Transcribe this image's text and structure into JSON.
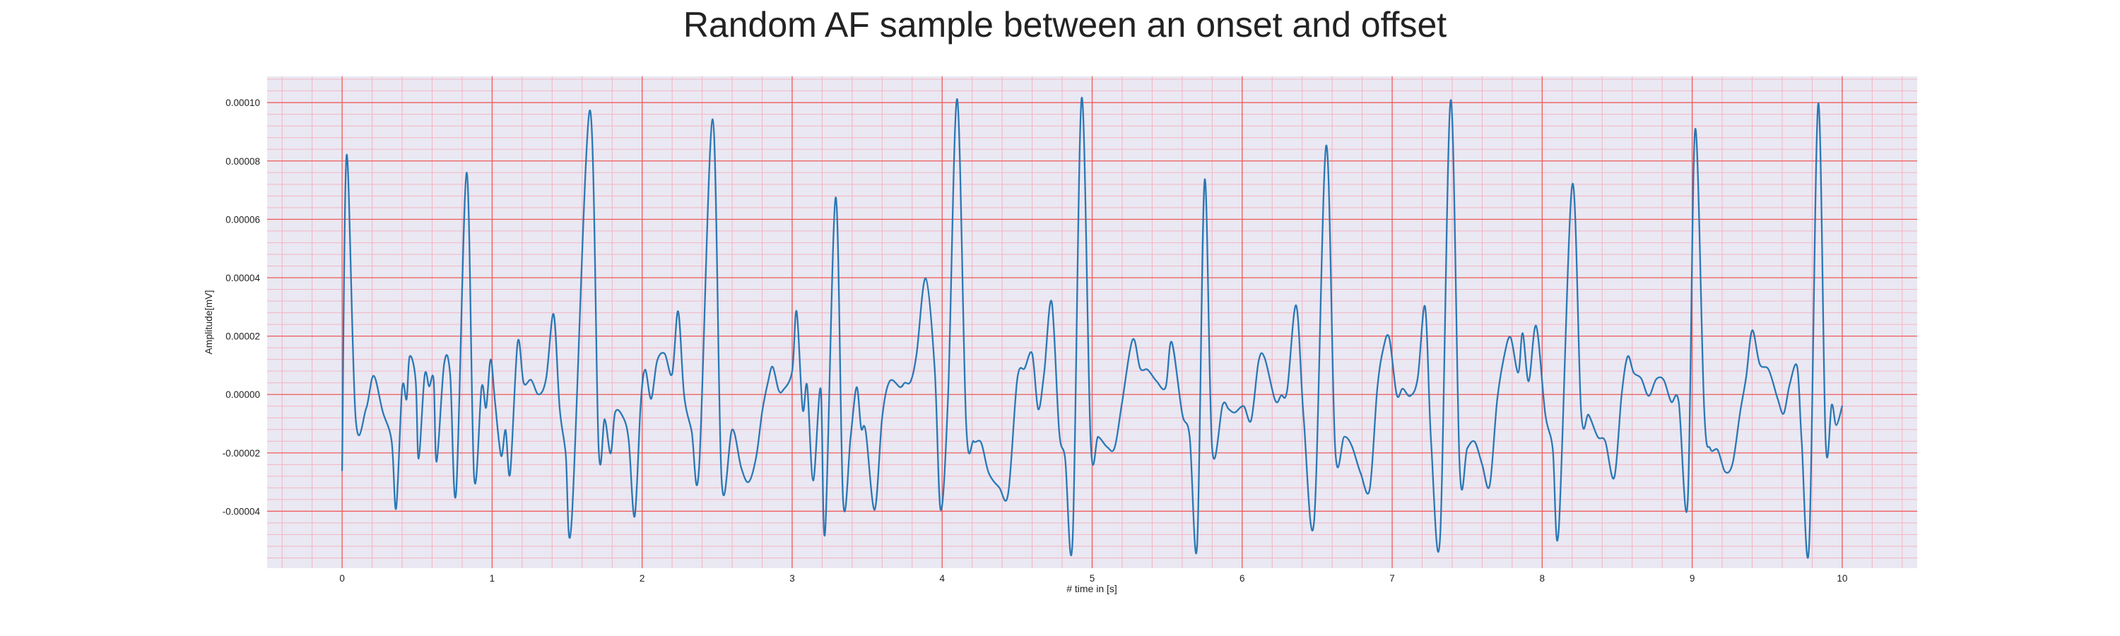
{
  "chart_data": {
    "type": "line",
    "title": "Random AF sample between an onset and offset",
    "xlabel": "# time in [s]",
    "ylabel": "Amplitude[mV]",
    "xlim": [
      -0.5,
      10.5
    ],
    "ylim": [
      -5.95e-05,
      0.000109
    ],
    "x_ticks": [
      0,
      1,
      2,
      3,
      4,
      5,
      6,
      7,
      8,
      9,
      10
    ],
    "x_tick_labels": [
      "0",
      "1",
      "2",
      "3",
      "4",
      "5",
      "6",
      "7",
      "8",
      "9",
      "10"
    ],
    "y_ticks": [
      -4e-05,
      -2e-05,
      0,
      2e-05,
      4e-05,
      6e-05,
      8e-05,
      0.0001
    ],
    "y_tick_labels": [
      "-0.00004",
      "-0.00002",
      "0.00000",
      "0.00002",
      "0.00004",
      "0.00006",
      "0.00008",
      "0.00010"
    ],
    "grid": true,
    "minor_grid": true,
    "legend": "none",
    "colors": {
      "line": "#2a78b5",
      "plot_background": "#eae8f2",
      "major_grid": "#ef5a5a",
      "minor_grid": "#f3b4c4"
    },
    "series": [
      {
        "values": [
          [
            0.0,
            -2.6e-05
          ],
          [
            0.03,
            8.21e-05
          ],
          [
            0.09,
            -7.8e-06
          ],
          [
            0.16,
            -4.8e-06
          ],
          [
            0.21,
            6.4e-06
          ],
          [
            0.27,
            -5.8e-06
          ],
          [
            0.33,
            -1.6e-05
          ],
          [
            0.36,
            -3.9e-05
          ],
          [
            0.4,
            2e-06
          ],
          [
            0.43,
            -1.6e-06
          ],
          [
            0.45,
            1.3e-05
          ],
          [
            0.49,
            5e-06
          ],
          [
            0.51,
            -2.2e-05
          ],
          [
            0.55,
            6.5e-06
          ],
          [
            0.58,
            2.8e-06
          ],
          [
            0.61,
            5.1e-06
          ],
          [
            0.63,
            -2.3e-05
          ],
          [
            0.68,
            1.05e-05
          ],
          [
            0.72,
            7e-06
          ],
          [
            0.76,
            -3.35e-05
          ],
          [
            0.83,
            7.6e-05
          ],
          [
            0.88,
            -2.82e-05
          ],
          [
            0.93,
            2.5e-06
          ],
          [
            0.96,
            -4.5e-06
          ],
          [
            0.99,
            1.2e-05
          ],
          [
            1.02,
            -3e-06
          ],
          [
            1.06,
            -2.1e-05
          ],
          [
            1.09,
            -1.22e-05
          ],
          [
            1.12,
            -2.7e-05
          ],
          [
            1.17,
            1.78e-05
          ],
          [
            1.21,
            4e-06
          ],
          [
            1.26,
            5e-06
          ],
          [
            1.31,
            0.0
          ],
          [
            1.36,
            5.5e-06
          ],
          [
            1.41,
            2.75e-05
          ],
          [
            1.45,
            -4.5e-06
          ],
          [
            1.49,
            -2e-05
          ],
          [
            1.53,
            -4.35e-05
          ],
          [
            1.65,
            9.72e-05
          ],
          [
            1.71,
            -1.82e-05
          ],
          [
            1.75,
            -8.5e-06
          ],
          [
            1.79,
            -2.02e-05
          ],
          [
            1.82,
            -6.2e-06
          ],
          [
            1.87,
            -7.5e-06
          ],
          [
            1.91,
            -1.55e-05
          ],
          [
            1.95,
            -4.18e-05
          ],
          [
            1.99,
            -3.5e-06
          ],
          [
            2.02,
            8.5e-06
          ],
          [
            2.06,
            -1.5e-06
          ],
          [
            2.1,
            1.15e-05
          ],
          [
            2.15,
            1.4e-05
          ],
          [
            2.2,
            7e-06
          ],
          [
            2.24,
            2.85e-05
          ],
          [
            2.28,
            -2e-07
          ],
          [
            2.33,
            -1.25e-05
          ],
          [
            2.38,
            -2.5e-05
          ],
          [
            2.47,
            9.43e-05
          ],
          [
            2.53,
            -2.95e-05
          ],
          [
            2.6,
            -1.2e-05
          ],
          [
            2.66,
            -2.5e-05
          ],
          [
            2.71,
            -3e-05
          ],
          [
            2.76,
            -2.15e-05
          ],
          [
            2.8,
            -6e-06
          ],
          [
            2.84,
            4.5e-06
          ],
          [
            2.87,
            9.5e-06
          ],
          [
            2.91,
            1.5e-06
          ],
          [
            2.94,
            1.5e-06
          ],
          [
            3.0,
            8e-06
          ],
          [
            3.03,
            2.85e-05
          ],
          [
            3.07,
            -5e-06
          ],
          [
            3.1,
            3e-06
          ],
          [
            3.14,
            -2.95e-05
          ],
          [
            3.19,
            2e-06
          ],
          [
            3.22,
            -4.7e-05
          ],
          [
            3.29,
            6.75e-05
          ],
          [
            3.34,
            -3.65e-05
          ],
          [
            3.39,
            -1.45e-05
          ],
          [
            3.43,
            2.5e-06
          ],
          [
            3.46,
            -1.15e-05
          ],
          [
            3.49,
            -1.25e-05
          ],
          [
            3.55,
            -3.95e-05
          ],
          [
            3.6,
            -8e-06
          ],
          [
            3.65,
            4.5e-06
          ],
          [
            3.72,
            2.5e-06
          ],
          [
            3.75,
            4e-06
          ],
          [
            3.79,
            4.5e-06
          ],
          [
            3.83,
            1.4e-05
          ],
          [
            3.89,
            3.98e-05
          ],
          [
            3.95,
            9e-06
          ],
          [
            3.99,
            -3.95e-05
          ],
          [
            4.04,
            0.0
          ],
          [
            4.1,
            0.0001012
          ],
          [
            4.16,
            -1e-05
          ],
          [
            4.21,
            -1.6e-05
          ],
          [
            4.26,
            -1.65e-05
          ],
          [
            4.31,
            -2.68e-05
          ],
          [
            4.38,
            -3.18e-05
          ],
          [
            4.44,
            -3.4e-05
          ],
          [
            4.5,
            5e-06
          ],
          [
            4.55,
            9e-06
          ],
          [
            4.6,
            1.4e-05
          ],
          [
            4.64,
            -5e-06
          ],
          [
            4.68,
            7.5e-06
          ],
          [
            4.73,
            3.18e-05
          ],
          [
            4.78,
            -1.25e-05
          ],
          [
            4.82,
            -2.2e-05
          ],
          [
            4.87,
            -4.95e-05
          ],
          [
            4.93,
            0.0001015
          ],
          [
            4.99,
            -1.6e-05
          ],
          [
            5.04,
            -1.45e-05
          ],
          [
            5.1,
            -1.8e-05
          ],
          [
            5.15,
            -1.82e-05
          ],
          [
            5.2,
            -2.5e-06
          ],
          [
            5.27,
            1.88e-05
          ],
          [
            5.32,
            9e-06
          ],
          [
            5.37,
            8.5e-06
          ],
          [
            5.43,
            4.5e-06
          ],
          [
            5.49,
            2.5e-06
          ],
          [
            5.53,
            1.8e-05
          ],
          [
            5.6,
            -6.5e-06
          ],
          [
            5.65,
            -1.45e-05
          ],
          [
            5.7,
            -5.15e-05
          ],
          [
            5.75,
            7.35e-05
          ],
          [
            5.8,
            -1.85e-05
          ],
          [
            5.87,
            -3.5e-06
          ],
          [
            5.91,
            -5e-06
          ],
          [
            5.95,
            -6.2e-06
          ],
          [
            6.01,
            -4e-06
          ],
          [
            6.06,
            -8.8e-06
          ],
          [
            6.11,
            1.15e-05
          ],
          [
            6.15,
            1.25e-05
          ],
          [
            6.22,
            -2e-06
          ],
          [
            6.26,
            -3e-07
          ],
          [
            6.3,
            1.5e-06
          ],
          [
            6.36,
            3.05e-05
          ],
          [
            6.41,
            -8e-06
          ],
          [
            6.48,
            -4.3e-05
          ],
          [
            6.56,
            8.52e-05
          ],
          [
            6.62,
            -1.85e-05
          ],
          [
            6.68,
            -1.45e-05
          ],
          [
            6.73,
            -1.75e-05
          ],
          [
            6.79,
            -2.7e-05
          ],
          [
            6.85,
            -3.25e-05
          ],
          [
            6.9,
            1.5e-06
          ],
          [
            6.94,
            1.55e-05
          ],
          [
            6.98,
            1.95e-05
          ],
          [
            7.03,
            0.0
          ],
          [
            7.07,
            2e-06
          ],
          [
            7.12,
            -5e-07
          ],
          [
            7.17,
            5.5e-06
          ],
          [
            7.22,
            3e-05
          ],
          [
            7.26,
            -1.65e-05
          ],
          [
            7.32,
            -4.85e-05
          ],
          [
            7.39,
            0.0001008
          ],
          [
            7.45,
            -2.5e-05
          ],
          [
            7.5,
            -1.85e-05
          ],
          [
            7.55,
            -1.62e-05
          ],
          [
            7.6,
            -2.4e-05
          ],
          [
            7.65,
            -3.12e-05
          ],
          [
            7.7,
            -2e-06
          ],
          [
            7.75,
            1.4e-05
          ],
          [
            7.79,
            1.95e-05
          ],
          [
            7.84,
            7.5e-06
          ],
          [
            7.87,
            2.1e-05
          ],
          [
            7.91,
            4.5e-06
          ],
          [
            7.96,
            2.35e-05
          ],
          [
            8.02,
            -6.5e-06
          ],
          [
            8.07,
            -1.85e-05
          ],
          [
            8.11,
            -4.65e-05
          ],
          [
            8.2,
            7.18e-05
          ],
          [
            8.26,
            -6e-06
          ],
          [
            8.31,
            -7e-06
          ],
          [
            8.37,
            -1.45e-05
          ],
          [
            8.42,
            -1.6e-05
          ],
          [
            8.48,
            -2.85e-05
          ],
          [
            8.53,
            0.0
          ],
          [
            8.57,
            1.3e-05
          ],
          [
            8.61,
            7.5e-06
          ],
          [
            8.66,
            5.5e-06
          ],
          [
            8.71,
            -5e-07
          ],
          [
            8.76,
            5.2e-06
          ],
          [
            8.81,
            5e-06
          ],
          [
            8.86,
            -2.5e-06
          ],
          [
            8.91,
            -2.5e-06
          ],
          [
            8.97,
            -3.7e-05
          ],
          [
            9.02,
            9.08e-05
          ],
          [
            9.08,
            -5e-06
          ],
          [
            9.12,
            -1.85e-05
          ],
          [
            9.17,
            -1.9e-05
          ],
          [
            9.22,
            -2.65e-05
          ],
          [
            9.27,
            -2.35e-05
          ],
          [
            9.32,
            -6e-06
          ],
          [
            9.36,
            6e-06
          ],
          [
            9.4,
            2.2e-05
          ],
          [
            9.45,
            1.05e-05
          ],
          [
            9.51,
            8.5e-06
          ],
          [
            9.57,
            -1.5e-06
          ],
          [
            9.61,
            -6.5e-06
          ],
          [
            9.65,
            3.5e-06
          ],
          [
            9.7,
            9.5e-06
          ],
          [
            9.73,
            -1.62e-05
          ],
          [
            9.78,
            -5.12e-05
          ],
          [
            9.84,
            9.95e-05
          ],
          [
            9.89,
            -1.62e-05
          ],
          [
            9.93,
            -3.5e-06
          ],
          [
            9.96,
            -1.05e-05
          ],
          [
            10.0,
            -4e-06
          ]
        ]
      }
    ]
  }
}
